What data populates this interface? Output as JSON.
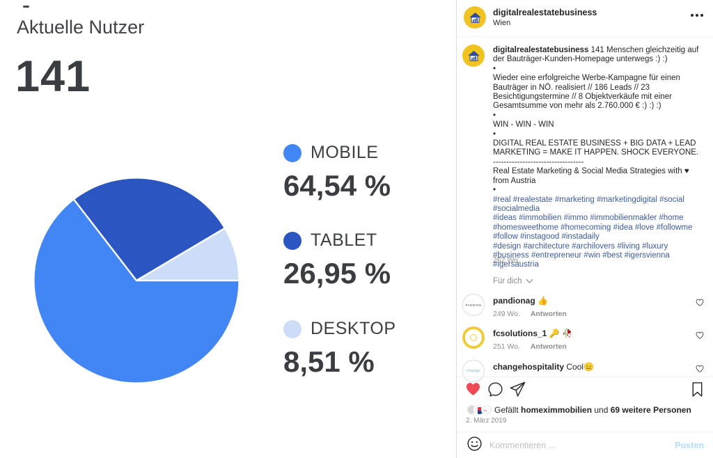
{
  "left_panel": {
    "title": "Aktuelle Nutzer",
    "value": "141"
  },
  "chart_data": {
    "type": "pie",
    "title": "Aktuelle Nutzer",
    "current_users": 141,
    "slices": [
      {
        "label": "MOBILE",
        "value": 64.54,
        "display": "64,54 %",
        "color": "#4285f4"
      },
      {
        "label": "TABLET",
        "value": 26.95,
        "display": "26,95 %",
        "color": "#2b56c1"
      },
      {
        "label": "DESKTOP",
        "value": 8.51,
        "display": "8,51 %",
        "color": "#cdddf7"
      }
    ],
    "start_angle_deg": 0,
    "direction": "clockwise",
    "legend_position": "right",
    "slice_stroke": "#ffffff"
  },
  "post": {
    "header": {
      "username": "digitalrealestatebusiness",
      "location": "Wien"
    },
    "caption": {
      "username": "digitalrealestatebusiness",
      "first_line": " 141 Menschen gleichzeitig auf der Bauträger-Kunden-Homepage unterwegs :) :)",
      "paragraphs": [
        "•",
        "Wieder eine erfolgreiche Werbe-Kampagne für einen Bauträger in NÖ. realisiert // 186 Leads // 23 Besichtigungstermine // 8 Objektverkäufe mit einer Gesamtsumme von mehr als 2.760.000 € :) :) :)",
        "•",
        "WIN - WIN - WIN",
        "•",
        "DIGITAL REAL ESTATE BUSINESS + BIG DATA + LEAD MARKETING = MAKE IT HAPPEN. SHOCK EVERYONE.",
        "----------------------------------",
        "Real Estate Marketing & Social Media Strategies with ♥ from Austria",
        "•"
      ],
      "hashtag_paragraphs": [
        "#real #realestate #marketing #marketingdigital #social #socialmedia",
        "#ideas #immobilien #immo #immobilienmakler #home #homesweethome #homecoming #idea #love #followme #follow #instagood #instadaily",
        "#design #architecture #archilovers #living #luxury",
        "#business #entrepreneur #win #best #igersvienna #igersaustria"
      ]
    },
    "age": "252 Wo.",
    "sort_label": "Für dich",
    "comments": [
      {
        "user": "pandionag",
        "text": "👍",
        "age": "249 Wo.",
        "reply": "Antworten",
        "avatar_text": "PANDION"
      },
      {
        "user": "fcsolutions_1",
        "text": "🔑 🥀",
        "age": "251 Wo.",
        "reply": "Antworten",
        "avatar_text": ""
      },
      {
        "user": "changehospitality",
        "text": "Cool😑",
        "avatar_text": "change"
      }
    ],
    "likes": {
      "prefix": "Gefällt ",
      "user": "homeximmobilien",
      "conj": " und ",
      "count": "69 weitere Personen"
    },
    "date": "2. März 2019",
    "composer": {
      "placeholder": "Kommentieren ...",
      "submit": "Posten"
    }
  },
  "colors": {
    "liked_heart": "#ed4956",
    "hashtag_blue": "#3d5b9e",
    "posten_disabled": "#b5ddfa",
    "avatar_yellow": "#f0c322"
  }
}
